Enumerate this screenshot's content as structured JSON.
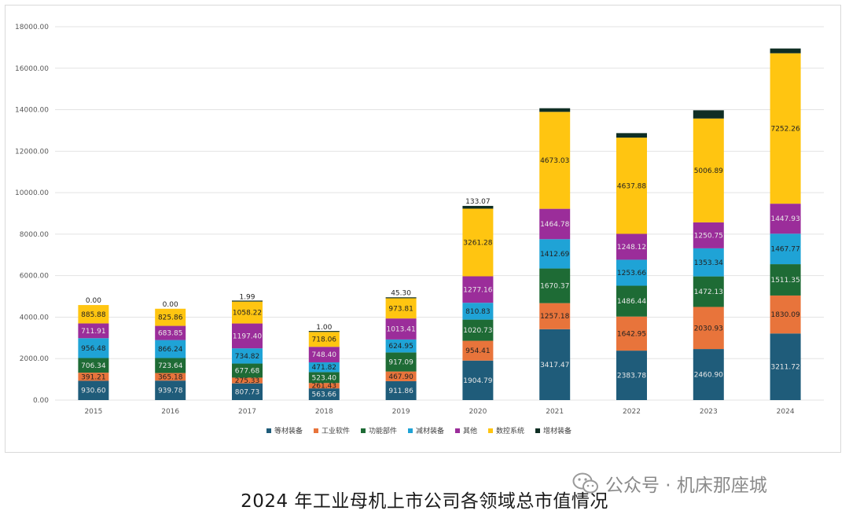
{
  "chart_data": {
    "type": "bar",
    "stacked": true,
    "title": "",
    "xlabel": "",
    "ylabel": "",
    "ylim": [
      0,
      18000
    ],
    "y_ticks": [
      "0.00",
      "2000.00",
      "4000.00",
      "6000.00",
      "8000.00",
      "10000.00",
      "12000.00",
      "14000.00",
      "16000.00",
      "18000.00"
    ],
    "y_tick_values": [
      0,
      2000,
      4000,
      6000,
      8000,
      10000,
      12000,
      14000,
      16000,
      18000
    ],
    "grid": true,
    "legend_position": "bottom",
    "categories": [
      "2015",
      "2016",
      "2017",
      "2018",
      "2019",
      "2020",
      "2021",
      "2022",
      "2023",
      "2024"
    ],
    "series": [
      {
        "name": "等材装备",
        "color": "#1f5c7a",
        "values": [
          930.6,
          939.78,
          807.73,
          563.66,
          911.86,
          1904.79,
          3417.47,
          2383.78,
          2460.9,
          3211.72
        ],
        "labels": [
          "930.60",
          "939.78",
          "807.73",
          "563.66",
          "911.86",
          "1904.79",
          "3417.47",
          "2383.78",
          "2460.90",
          "3211.72"
        ]
      },
      {
        "name": "工业软件",
        "color": "#e8743b",
        "values": [
          391.21,
          365.18,
          275.33,
          261.43,
          467.9,
          954.41,
          1257.18,
          1642.95,
          2030.93,
          1830.09
        ],
        "labels": [
          "391.21",
          "365.18",
          "275.33",
          "261.43",
          "467.90",
          "954.41",
          "1257.18",
          "1642.95",
          "2030.93",
          "1830.09"
        ]
      },
      {
        "name": "功能部件",
        "color": "#1e6b35",
        "values": [
          706.34,
          723.64,
          677.68,
          523.4,
          917.09,
          1020.73,
          1670.37,
          1486.44,
          1472.13,
          1511.35
        ],
        "labels": [
          "706.34",
          "723.64",
          "677.68",
          "523.40",
          "917.09",
          "1020.73",
          "1670.37",
          "1486.44",
          "1472.13",
          "1511.35"
        ]
      },
      {
        "name": "减材装备",
        "color": "#1fa3d6",
        "values": [
          956.48,
          866.24,
          734.82,
          471.82,
          624.95,
          810.83,
          1412.69,
          1253.66,
          1353.34,
          1467.77
        ],
        "labels": [
          "956.48",
          "866.24",
          "734.82",
          "471.82",
          "624.95",
          "810.83",
          "1412.69",
          "1253.66",
          "1353.34",
          "1467.77"
        ]
      },
      {
        "name": "其他",
        "color": "#9b2d9a",
        "values": [
          711.91,
          683.85,
          1197.4,
          748.4,
          1013.41,
          1277.16,
          1464.78,
          1248.12,
          1250.75,
          1447.93
        ],
        "labels": [
          "711.91",
          "683.85",
          "1197.40",
          "748.40",
          "1013.41",
          "1277.16",
          "1464.78",
          "1248.12",
          "1250.75",
          "1447.93"
        ]
      },
      {
        "name": "数控系统",
        "color": "#ffc511",
        "values": [
          885.88,
          825.86,
          1058.22,
          718.06,
          973.81,
          3261.28,
          4673.03,
          4637.88,
          5006.89,
          7252.26
        ],
        "labels": [
          "885.88",
          "825.86",
          "1058.22",
          "718.06",
          "973.81",
          "3261.28",
          "4673.03",
          "4637.88",
          "5006.89",
          "7252.26"
        ]
      },
      {
        "name": "增材装备",
        "color": "#0f2e24",
        "values": [
          0.0,
          0.0,
          1.99,
          1.0,
          45.3,
          133.07,
          175.0,
          218.0,
          396.0,
          230.0
        ],
        "labels": [
          "0.00",
          "0.00",
          "1.99",
          "1.00",
          "45.30",
          "133.07",
          "",
          "",
          "",
          ""
        ]
      }
    ]
  },
  "caption": "2024 年工业母机上市公司各领域总市值情况",
  "watermark": {
    "text": "公众号 · 机床那座城",
    "icon": "wechat-icon"
  }
}
